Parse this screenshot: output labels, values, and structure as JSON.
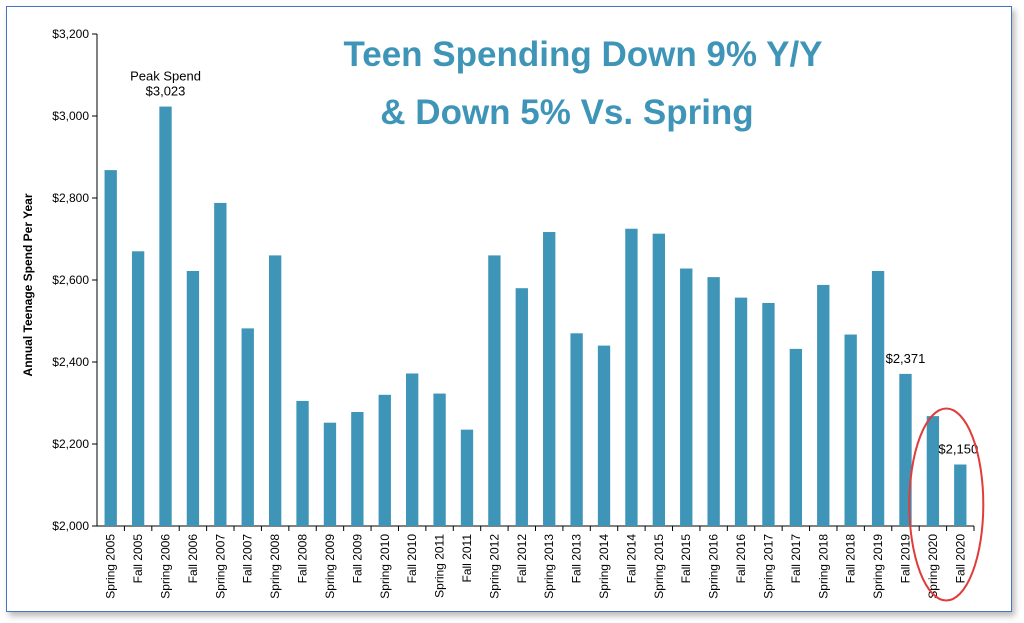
{
  "colors": {
    "bar": "#3e95b7",
    "title": "#3e95b7",
    "highlight": "#e03c3c",
    "axis": "#000000"
  },
  "chart_data": {
    "type": "bar",
    "title_lines": [
      "Teen Spending Down 9% Y/Y",
      "& Down 5% Vs. Spring"
    ],
    "ylabel": "Annual Teenage Spend Per Year",
    "xlabel": "",
    "ylim": [
      2000,
      3200
    ],
    "yticks": [
      "$2,000",
      "$2,200",
      "$2,400",
      "$2,600",
      "$2,800",
      "$3,000",
      "$3,200"
    ],
    "categories": [
      "Spring 2005",
      "Fall 2005",
      "Spring 2006",
      "Fall 2006",
      "Spring 2007",
      "Fall 2007",
      "Spring 2008",
      "Fall 2008",
      "Spring 2009",
      "Fall 2009",
      "Spring 2010",
      "Fall 2010",
      "Spring 2011",
      "Fall 2011",
      "Spring 2012",
      "Fall 2012",
      "Spring 2013",
      "Fall 2013",
      "Spring 2014",
      "Fall 2014",
      "Spring 2015",
      "Fall 2015",
      "Spring 2016",
      "Fall 2016",
      "Spring 2017",
      "Fall 2017",
      "Spring 2018",
      "Fall 2018",
      "Spring 2019",
      "Fall 2019",
      "Spring 2020",
      "Fall 2020"
    ],
    "values": [
      2868,
      2670,
      3023,
      2622,
      2788,
      2482,
      2660,
      2305,
      2252,
      2278,
      2320,
      2372,
      2323,
      2235,
      2660,
      2580,
      2717,
      2470,
      2440,
      2725,
      2713,
      2628,
      2607,
      2557,
      2544,
      2432,
      2588,
      2467,
      2622,
      2371,
      2268,
      2150
    ],
    "annotations": [
      {
        "text": "Peak Spend",
        "index": 2
      },
      {
        "text": "$3,023",
        "index": 2
      },
      {
        "text": "$2,371",
        "index": 29
      },
      {
        "text": "$2,150",
        "index": 31
      }
    ],
    "grid": false,
    "legend": "none",
    "highlight": {
      "shape": "ellipse",
      "index": 31
    }
  }
}
